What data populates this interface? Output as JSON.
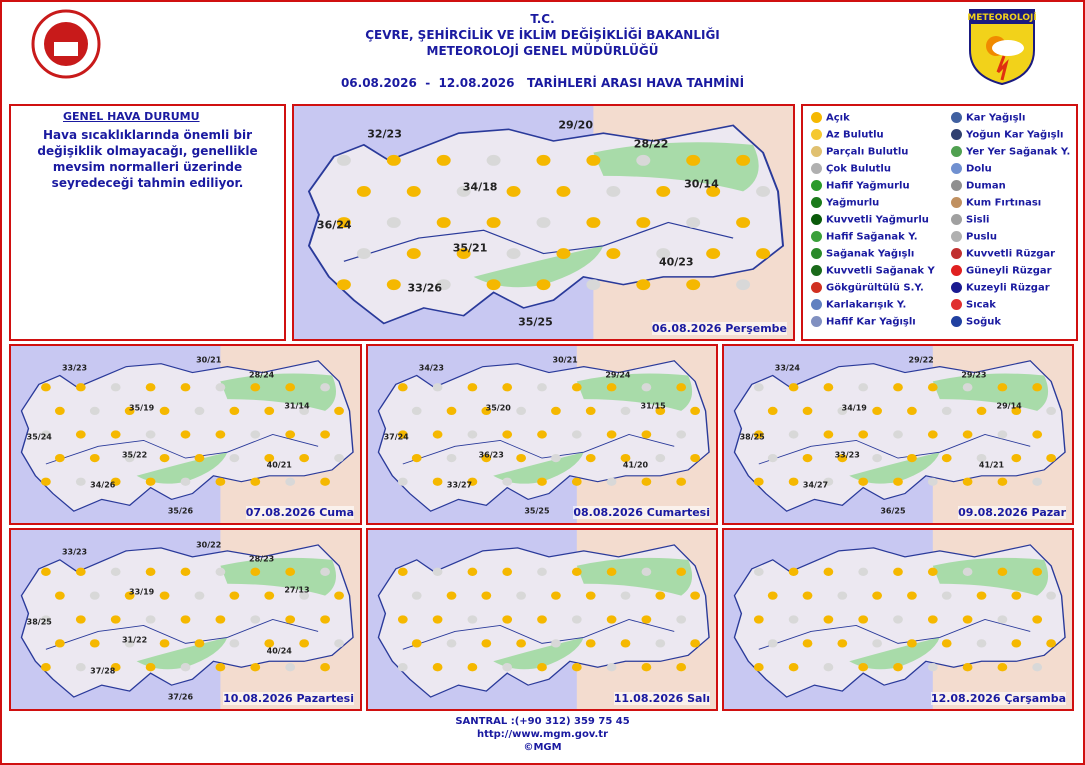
{
  "header": {
    "line1": "T.C.",
    "line2": "ÇEVRE, ŞEHİRCİLİK VE İKLİM DEĞİŞİKLİĞİ BAKANLIĞI",
    "line3": "METEOROLOJİ  GENEL  MÜDÜRLÜĞÜ",
    "date_range": "06.08.2026  -  12.08.2026   TARİHLERİ ARASI HAVA TAHMİNİ",
    "logo_text": "METEOROLOJİ"
  },
  "general": {
    "title": "GENEL HAVA DURUMU",
    "text": "Hava sıcaklıklarında önemli bir değişiklik olmayacağı, genellikle mevsim normalleri üzerinde seyredeceği tahmin ediliyor."
  },
  "legend": [
    "Açık",
    "Az Bulutlu",
    "Parçalı Bulutlu",
    "Çok Bulutlu",
    "Hafif Yağmurlu",
    "Yağmurlu",
    "Kuvvetli Yağmurlu",
    "Hafif Sağanak Y.",
    "Sağanak Yağışlı",
    "Kuvvetli Sağanak Y",
    "Gökgürültülü S.Y.",
    "Karlakarışık Y.",
    "Hafif Kar Yağışlı",
    "Kar Yağışlı",
    "Yoğun Kar Yağışlı",
    "Yer Yer Sağanak Y.",
    "Dolu",
    "Duman",
    "Kum Fırtınası",
    "Sisli",
    "Puslu",
    "Kuvvetli Rüzgar",
    "Güneyli Rüzgar",
    "Kuzeyli Rüzgar",
    "Sıcak",
    "Soğuk"
  ],
  "maps": [
    {
      "caption": "06.08.2026 Perşembe",
      "temps": [
        "32/23",
        "29/20",
        "28/22",
        "34/18",
        "30/14",
        "36/24",
        "35/21",
        "40/23",
        "33/26",
        "35/25"
      ]
    },
    {
      "caption": "07.08.2026 Cuma",
      "temps": [
        "33/23",
        "30/21",
        "28/24",
        "35/19",
        "31/14",
        "35/24",
        "35/22",
        "40/21",
        "34/26",
        "35/26"
      ]
    },
    {
      "caption": "08.08.2026 Cumartesi",
      "temps": [
        "34/23",
        "30/21",
        "29/24",
        "35/20",
        "31/15",
        "37/24",
        "36/23",
        "41/20",
        "33/27",
        "35/25"
      ]
    },
    {
      "caption": "09.08.2026 Pazar",
      "temps": [
        "33/24",
        "29/22",
        "29/23",
        "34/19",
        "29/14",
        "38/25",
        "33/23",
        "41/21",
        "34/27",
        "36/25"
      ]
    },
    {
      "caption": "10.08.2026 Pazartesi",
      "temps": [
        "33/23",
        "30/22",
        "28/23",
        "33/19",
        "27/13",
        "38/25",
        "31/22",
        "40/24",
        "37/28",
        "37/26"
      ]
    },
    {
      "caption": "11.08.2026 Salı",
      "temps": []
    },
    {
      "caption": "12.08.2026 Çarşamba",
      "temps": []
    }
  ],
  "footer": [
    "SANTRAL :(+90 312) 359 75 45",
    "http://www.mgm.gov.tr",
    "©MGM"
  ]
}
